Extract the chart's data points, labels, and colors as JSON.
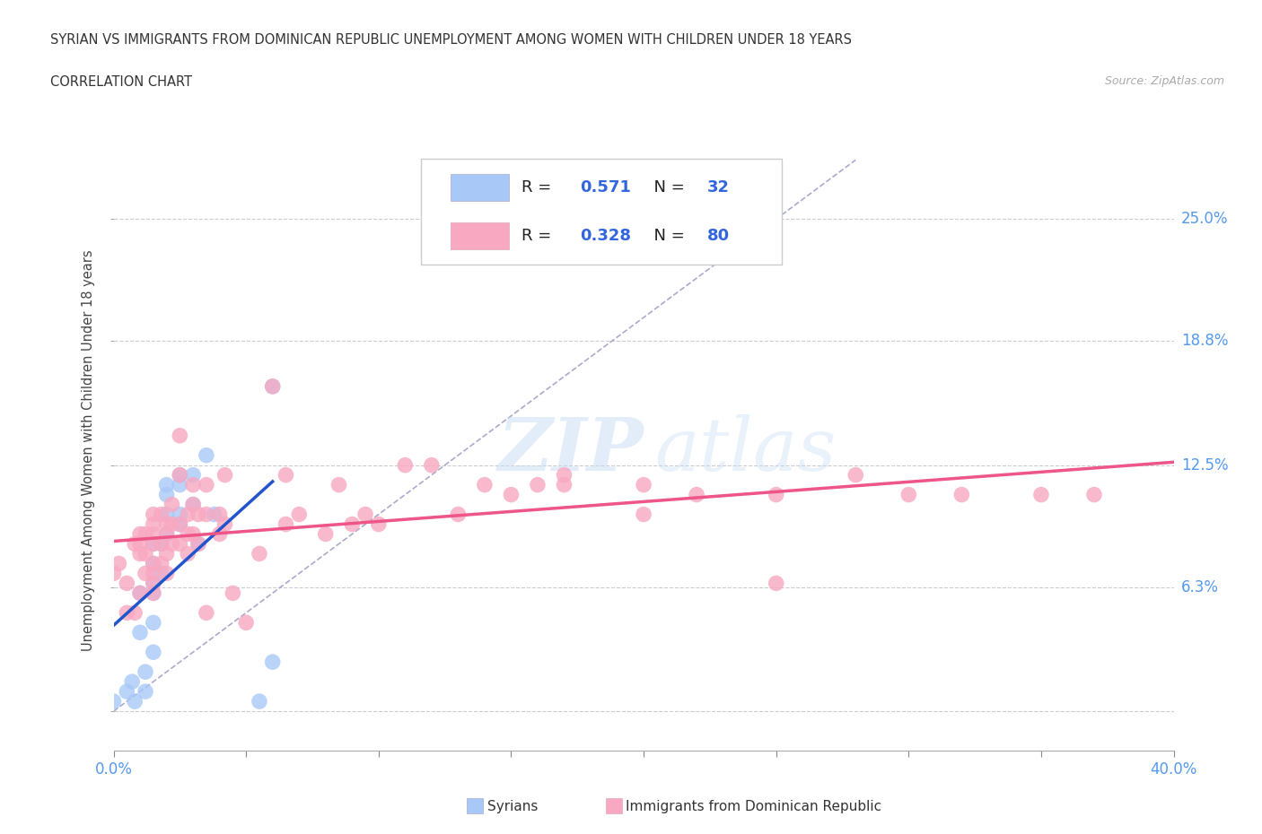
{
  "title_line1": "SYRIAN VS IMMIGRANTS FROM DOMINICAN REPUBLIC UNEMPLOYMENT AMONG WOMEN WITH CHILDREN UNDER 18 YEARS",
  "title_line2": "CORRELATION CHART",
  "source_text": "Source: ZipAtlas.com",
  "ylabel": "Unemployment Among Women with Children Under 18 years",
  "xlim": [
    0.0,
    0.4
  ],
  "ylim": [
    -0.02,
    0.285
  ],
  "xticks": [
    0.0,
    0.05,
    0.1,
    0.15,
    0.2,
    0.25,
    0.3,
    0.35,
    0.4
  ],
  "ytick_positions": [
    0.0,
    0.063,
    0.125,
    0.188,
    0.25
  ],
  "ytick_labels": [
    "",
    "6.3%",
    "12.5%",
    "18.8%",
    "25.0%"
  ],
  "background_color": "#ffffff",
  "grid_color": "#cccccc",
  "watermark_zip": "ZIP",
  "watermark_atlas": "atlas",
  "R_syrian": 0.571,
  "N_syrian": 32,
  "R_dr": 0.328,
  "N_dr": 80,
  "syrian_color": "#a8c8f8",
  "dr_color": "#f8a8c0",
  "syrian_line_color": "#2255cc",
  "dr_line_color": "#ee5588",
  "diagonal_color": "#aaaacc",
  "syrians_scatter": [
    [
      0.0,
      0.005
    ],
    [
      0.005,
      0.01
    ],
    [
      0.007,
      0.015
    ],
    [
      0.008,
      0.005
    ],
    [
      0.01,
      0.04
    ],
    [
      0.01,
      0.06
    ],
    [
      0.012,
      0.01
    ],
    [
      0.012,
      0.02
    ],
    [
      0.015,
      0.03
    ],
    [
      0.015,
      0.045
    ],
    [
      0.015,
      0.06
    ],
    [
      0.015,
      0.065
    ],
    [
      0.015,
      0.075
    ],
    [
      0.015,
      0.085
    ],
    [
      0.018,
      0.07
    ],
    [
      0.018,
      0.085
    ],
    [
      0.02,
      0.09
    ],
    [
      0.02,
      0.1
    ],
    [
      0.02,
      0.11
    ],
    [
      0.02,
      0.115
    ],
    [
      0.025,
      0.095
    ],
    [
      0.025,
      0.1
    ],
    [
      0.025,
      0.115
    ],
    [
      0.025,
      0.12
    ],
    [
      0.03,
      0.105
    ],
    [
      0.03,
      0.12
    ],
    [
      0.032,
      0.085
    ],
    [
      0.035,
      0.13
    ],
    [
      0.038,
      0.1
    ],
    [
      0.055,
      0.005
    ],
    [
      0.06,
      0.025
    ],
    [
      0.06,
      0.165
    ]
  ],
  "dr_scatter": [
    [
      0.0,
      0.07
    ],
    [
      0.002,
      0.075
    ],
    [
      0.005,
      0.05
    ],
    [
      0.005,
      0.065
    ],
    [
      0.008,
      0.05
    ],
    [
      0.008,
      0.085
    ],
    [
      0.01,
      0.06
    ],
    [
      0.01,
      0.08
    ],
    [
      0.01,
      0.085
    ],
    [
      0.01,
      0.09
    ],
    [
      0.012,
      0.07
    ],
    [
      0.012,
      0.08
    ],
    [
      0.012,
      0.09
    ],
    [
      0.015,
      0.06
    ],
    [
      0.015,
      0.065
    ],
    [
      0.015,
      0.07
    ],
    [
      0.015,
      0.075
    ],
    [
      0.015,
      0.085
    ],
    [
      0.015,
      0.09
    ],
    [
      0.015,
      0.095
    ],
    [
      0.015,
      0.1
    ],
    [
      0.018,
      0.075
    ],
    [
      0.018,
      0.085
    ],
    [
      0.018,
      0.1
    ],
    [
      0.02,
      0.07
    ],
    [
      0.02,
      0.08
    ],
    [
      0.02,
      0.09
    ],
    [
      0.02,
      0.095
    ],
    [
      0.022,
      0.085
    ],
    [
      0.022,
      0.095
    ],
    [
      0.022,
      0.105
    ],
    [
      0.025,
      0.085
    ],
    [
      0.025,
      0.095
    ],
    [
      0.025,
      0.12
    ],
    [
      0.025,
      0.14
    ],
    [
      0.028,
      0.08
    ],
    [
      0.028,
      0.09
    ],
    [
      0.028,
      0.1
    ],
    [
      0.03,
      0.09
    ],
    [
      0.03,
      0.105
    ],
    [
      0.03,
      0.115
    ],
    [
      0.032,
      0.085
    ],
    [
      0.032,
      0.1
    ],
    [
      0.035,
      0.05
    ],
    [
      0.035,
      0.1
    ],
    [
      0.035,
      0.115
    ],
    [
      0.04,
      0.09
    ],
    [
      0.04,
      0.1
    ],
    [
      0.042,
      0.095
    ],
    [
      0.042,
      0.12
    ],
    [
      0.045,
      0.06
    ],
    [
      0.05,
      0.045
    ],
    [
      0.055,
      0.08
    ],
    [
      0.06,
      0.165
    ],
    [
      0.065,
      0.095
    ],
    [
      0.065,
      0.12
    ],
    [
      0.07,
      0.1
    ],
    [
      0.08,
      0.09
    ],
    [
      0.085,
      0.115
    ],
    [
      0.09,
      0.095
    ],
    [
      0.095,
      0.1
    ],
    [
      0.1,
      0.095
    ],
    [
      0.11,
      0.125
    ],
    [
      0.12,
      0.125
    ],
    [
      0.13,
      0.1
    ],
    [
      0.14,
      0.115
    ],
    [
      0.15,
      0.11
    ],
    [
      0.16,
      0.115
    ],
    [
      0.17,
      0.115
    ],
    [
      0.17,
      0.12
    ],
    [
      0.2,
      0.1
    ],
    [
      0.2,
      0.115
    ],
    [
      0.22,
      0.11
    ],
    [
      0.25,
      0.11
    ],
    [
      0.25,
      0.065
    ],
    [
      0.28,
      0.12
    ],
    [
      0.3,
      0.11
    ],
    [
      0.32,
      0.11
    ],
    [
      0.35,
      0.11
    ],
    [
      0.37,
      0.11
    ]
  ]
}
